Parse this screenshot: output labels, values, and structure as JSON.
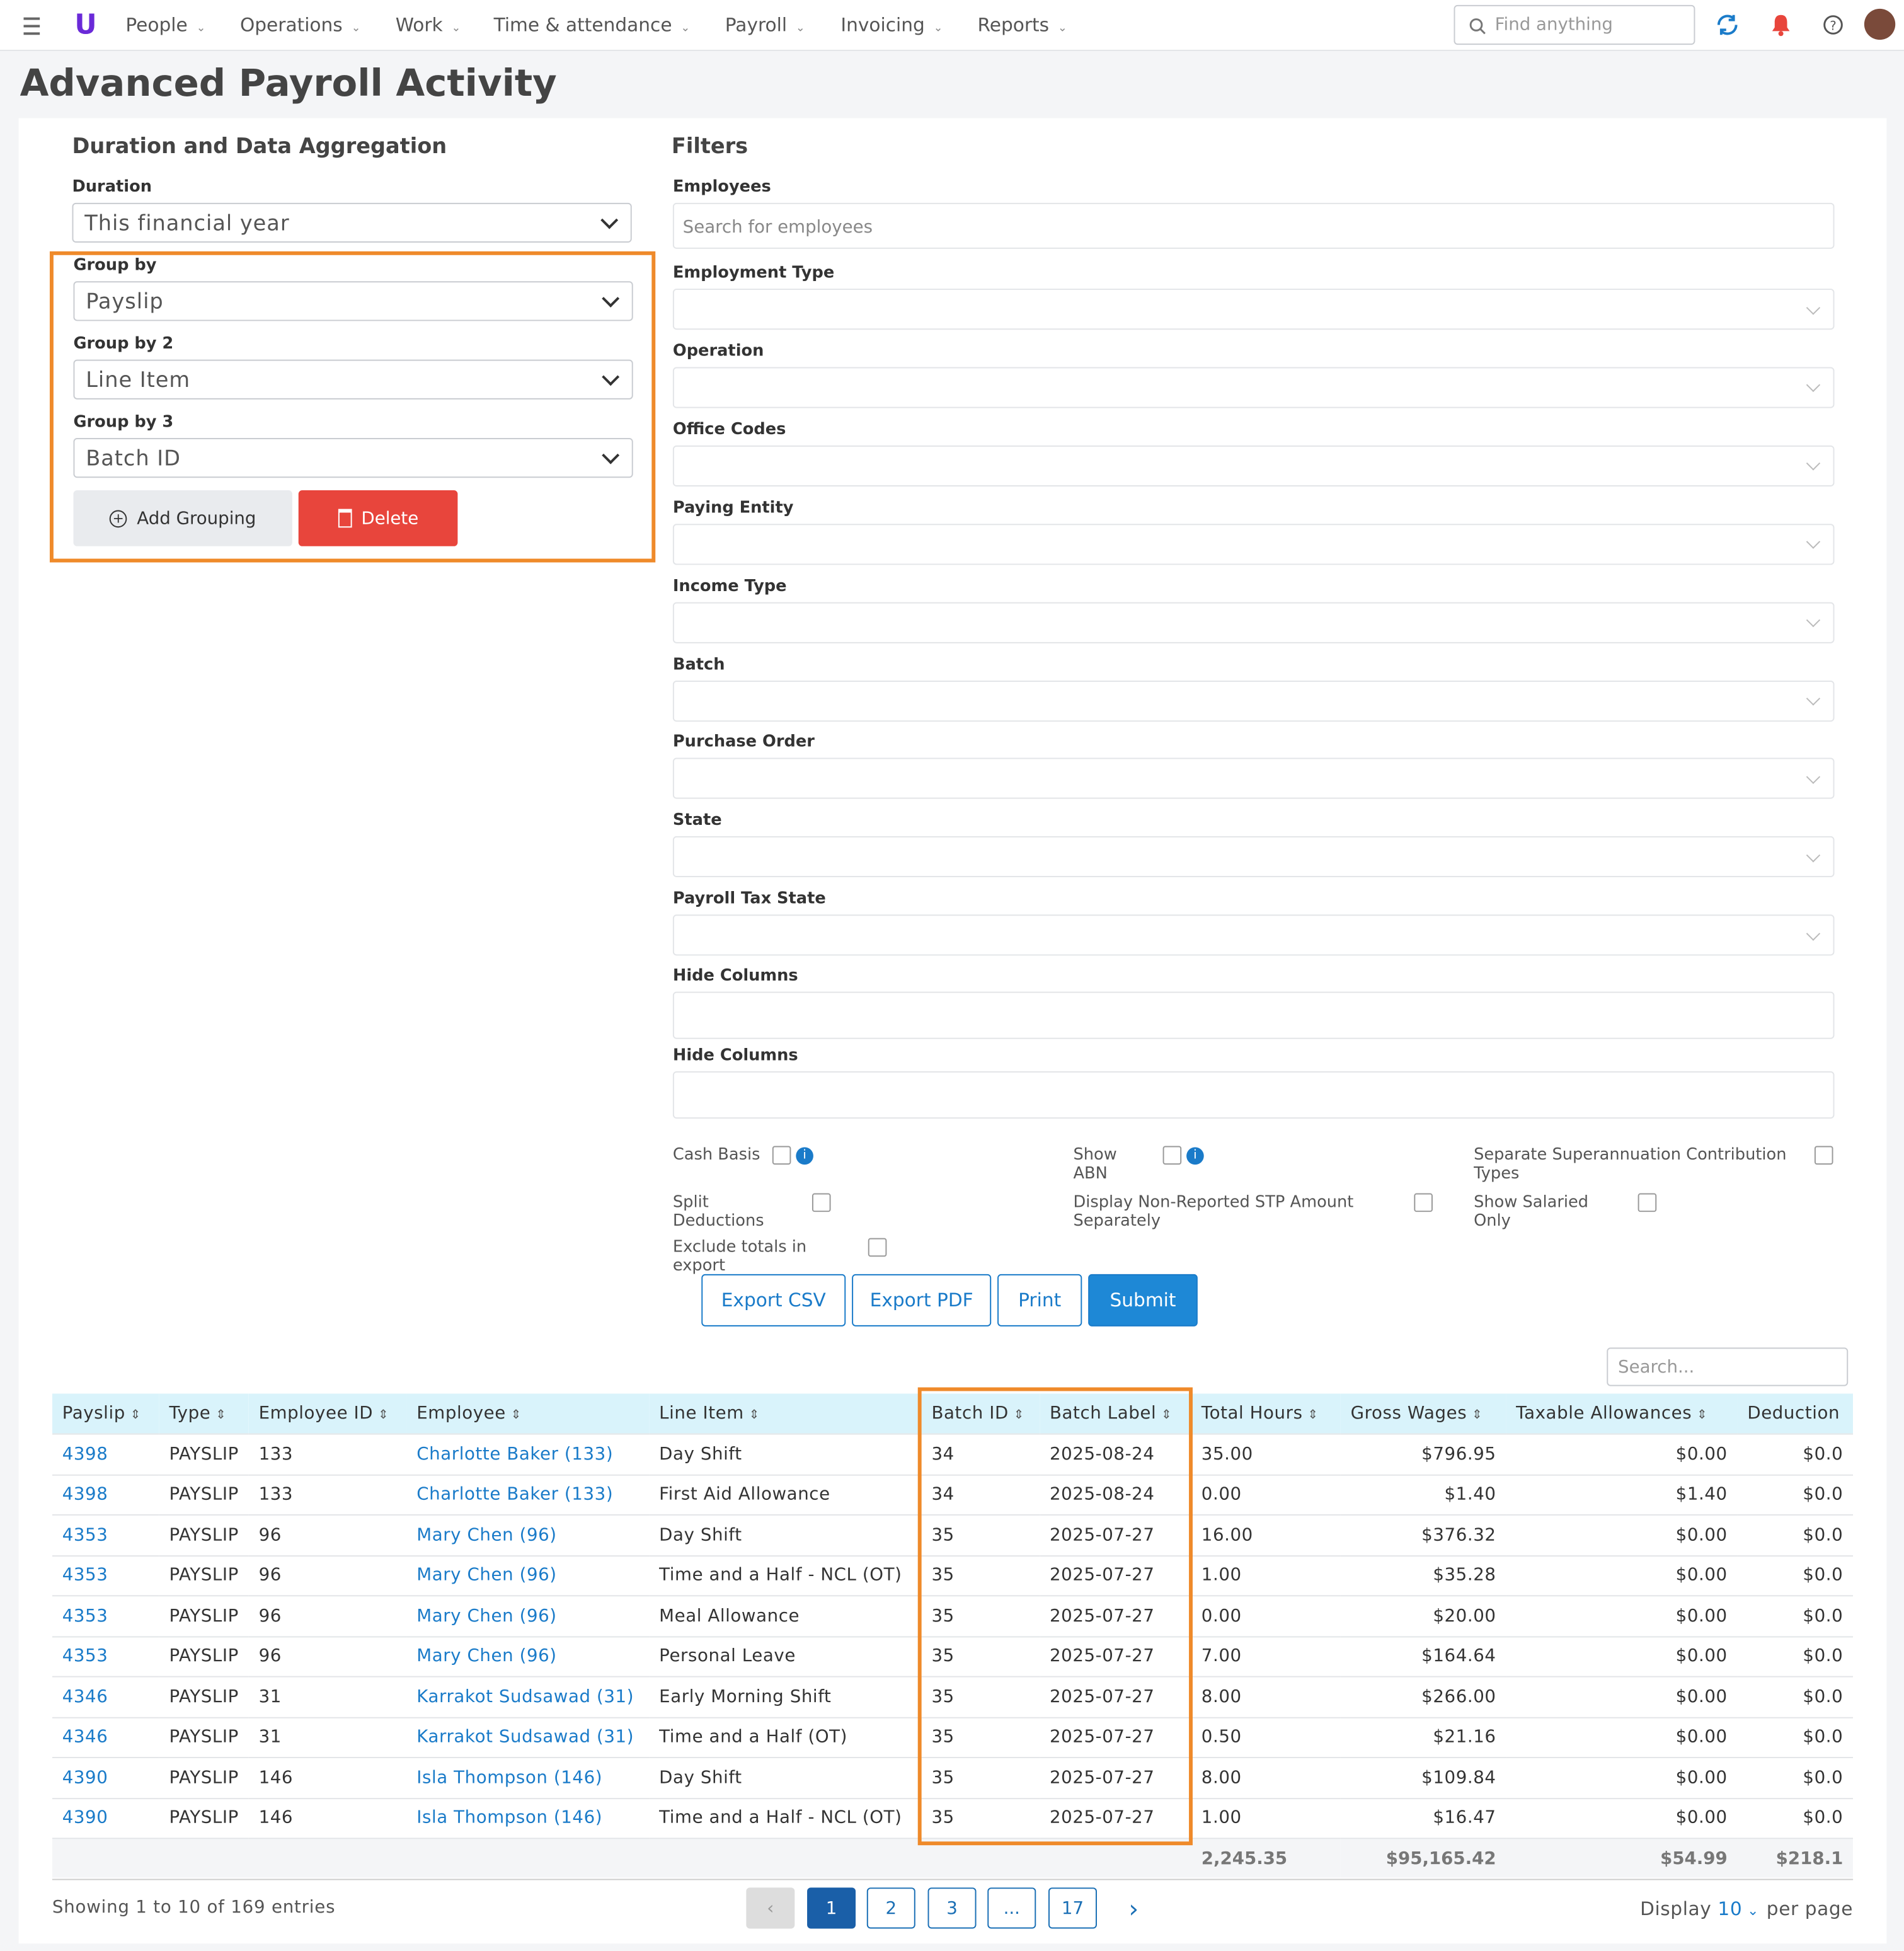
{
  "nav": {
    "items": [
      "People",
      "Operations",
      "Work",
      "Time & attendance",
      "Payroll",
      "Invoicing",
      "Reports"
    ],
    "search_placeholder": "Find anything"
  },
  "page_title": "Advanced Payroll Activity",
  "aggregation": {
    "heading": "Duration and Data Aggregation",
    "fields": [
      {
        "label": "Duration",
        "value": "This financial year"
      },
      {
        "label": "Group by",
        "value": "Payslip"
      },
      {
        "label": "Group by 2",
        "value": "Line Item"
      },
      {
        "label": "Group by 3",
        "value": "Batch ID"
      }
    ],
    "add_button": "Add Grouping",
    "delete_button": "Delete"
  },
  "filters": {
    "heading": "Filters",
    "employees_label": "Employees",
    "employees_placeholder": "Search for employees",
    "selects": [
      "Employment Type",
      "Operation",
      "Office Codes",
      "Paying Entity",
      "Income Type",
      "Batch",
      "Purchase Order",
      "State",
      "Payroll Tax State"
    ],
    "text_fields": [
      "Hide Columns",
      "Hide Columns"
    ],
    "checkboxes": [
      "Cash Basis",
      "Show ABN",
      "Separate Superannuation Contribution Types",
      "Split Deductions",
      "Display Non-Reported STP Amount Separately",
      "Show Salaried Only",
      "Exclude totals in export"
    ],
    "buttons": [
      "Export CSV",
      "Export PDF",
      "Print",
      "Submit"
    ]
  },
  "table": {
    "search_placeholder": "Search...",
    "columns": [
      "Payslip",
      "Type",
      "Employee ID",
      "Employee",
      "Line Item",
      "Batch ID",
      "Batch Label",
      "Total Hours",
      "Gross Wages",
      "Taxable Allowances",
      "Deduction"
    ],
    "rows": [
      [
        "4398",
        "PAYSLIP",
        "133",
        "Charlotte Baker (133)",
        "Day Shift",
        "34",
        "2025-08-24",
        "35.00",
        "$796.95",
        "$0.00",
        "$0.0"
      ],
      [
        "4398",
        "PAYSLIP",
        "133",
        "Charlotte Baker (133)",
        "First Aid Allowance",
        "34",
        "2025-08-24",
        "0.00",
        "$1.40",
        "$1.40",
        "$0.0"
      ],
      [
        "4353",
        "PAYSLIP",
        "96",
        "Mary Chen (96)",
        "Day Shift",
        "35",
        "2025-07-27",
        "16.00",
        "$376.32",
        "$0.00",
        "$0.0"
      ],
      [
        "4353",
        "PAYSLIP",
        "96",
        "Mary Chen (96)",
        "Time and a Half - NCL (OT)",
        "35",
        "2025-07-27",
        "1.00",
        "$35.28",
        "$0.00",
        "$0.0"
      ],
      [
        "4353",
        "PAYSLIP",
        "96",
        "Mary Chen (96)",
        "Meal Allowance",
        "35",
        "2025-07-27",
        "0.00",
        "$20.00",
        "$0.00",
        "$0.0"
      ],
      [
        "4353",
        "PAYSLIP",
        "96",
        "Mary Chen (96)",
        "Personal Leave",
        "35",
        "2025-07-27",
        "7.00",
        "$164.64",
        "$0.00",
        "$0.0"
      ],
      [
        "4346",
        "PAYSLIP",
        "31",
        "Karrakot Sudsawad (31)",
        "Early Morning Shift",
        "35",
        "2025-07-27",
        "8.00",
        "$266.00",
        "$0.00",
        "$0.0"
      ],
      [
        "4346",
        "PAYSLIP",
        "31",
        "Karrakot Sudsawad (31)",
        "Time and a Half (OT)",
        "35",
        "2025-07-27",
        "0.50",
        "$21.16",
        "$0.00",
        "$0.0"
      ],
      [
        "4390",
        "PAYSLIP",
        "146",
        "Isla Thompson (146)",
        "Day Shift",
        "35",
        "2025-07-27",
        "8.00",
        "$109.84",
        "$0.00",
        "$0.0"
      ],
      [
        "4390",
        "PAYSLIP",
        "146",
        "Isla Thompson (146)",
        "Time and a Half - NCL (OT)",
        "35",
        "2025-07-27",
        "1.00",
        "$16.47",
        "$0.00",
        "$0.0"
      ]
    ],
    "totals": [
      "2,245.35",
      "$95,165.42",
      "$54.99",
      "$218.1"
    ]
  },
  "footer": {
    "summary": "Showing 1 to 10 of 169 entries",
    "pages": [
      "1",
      "2",
      "3",
      "...",
      "17"
    ],
    "display_label": "Display",
    "page_size": "10",
    "per_page_label": "per page"
  }
}
